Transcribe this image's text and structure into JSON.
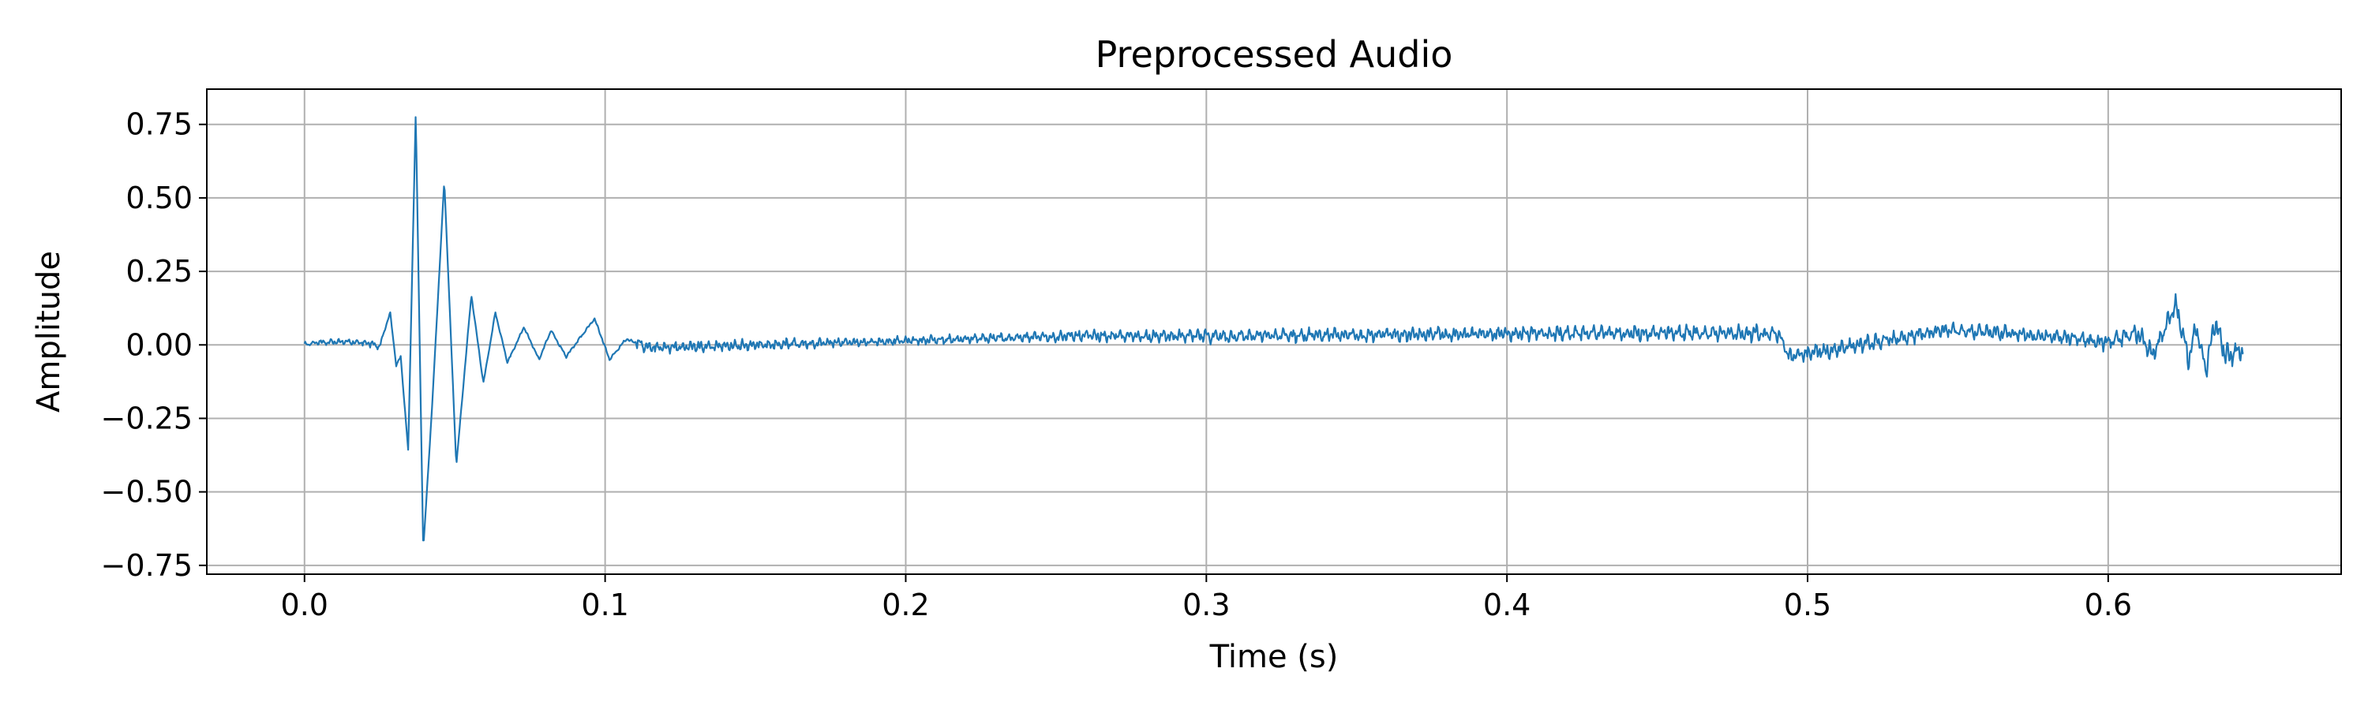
{
  "chart_data": {
    "type": "line",
    "title": "Preprocessed Audio",
    "xlabel": "Time (s)",
    "ylabel": "Amplitude",
    "xlim": [
      -0.0325,
      0.6775
    ],
    "ylim": [
      -0.78,
      0.87
    ],
    "xticks": [
      {
        "value": 0.0,
        "label": "0.0"
      },
      {
        "value": 0.1,
        "label": "0.1"
      },
      {
        "value": 0.2,
        "label": "0.2"
      },
      {
        "value": 0.3,
        "label": "0.3"
      },
      {
        "value": 0.4,
        "label": "0.4"
      },
      {
        "value": 0.5,
        "label": "0.5"
      },
      {
        "value": 0.6,
        "label": "0.6"
      }
    ],
    "yticks": [
      {
        "value": 0.75,
        "label": "0.75"
      },
      {
        "value": 0.5,
        "label": "0.50"
      },
      {
        "value": 0.25,
        "label": "0.25"
      },
      {
        "value": 0.0,
        "label": "0.00"
      },
      {
        "value": -0.25,
        "label": "−0.25"
      },
      {
        "value": -0.5,
        "label": "−0.50"
      },
      {
        "value": -0.75,
        "label": "−0.75"
      }
    ],
    "grid": true,
    "legend": "none",
    "line_color": "#1f77b4",
    "grid_color": "#b0b0b0",
    "series": [
      {
        "duration": 0.645,
        "envelope": [
          [
            0.0,
            0.004
          ],
          [
            0.02,
            0.006
          ],
          [
            0.12,
            0.01
          ],
          [
            0.2,
            0.007
          ],
          [
            0.3,
            0.011
          ],
          [
            0.42,
            0.012
          ],
          [
            0.5,
            0.014
          ],
          [
            0.58,
            0.012
          ],
          [
            0.605,
            0.015
          ],
          [
            0.645,
            0.02
          ]
        ],
        "keypoints": [
          [
            0.0,
            0.0
          ],
          [
            0.005,
            0.01
          ],
          [
            0.02,
            0.008
          ],
          [
            0.025,
            -0.005
          ],
          [
            0.0285,
            0.11
          ],
          [
            0.0305,
            -0.07
          ],
          [
            0.032,
            -0.04
          ],
          [
            0.0345,
            -0.36
          ],
          [
            0.037,
            0.79
          ],
          [
            0.0395,
            -0.7
          ],
          [
            0.0425,
            -0.2
          ],
          [
            0.0465,
            0.56
          ],
          [
            0.0505,
            -0.41
          ],
          [
            0.0555,
            0.17
          ],
          [
            0.0595,
            -0.13
          ],
          [
            0.0635,
            0.11
          ],
          [
            0.0675,
            -0.06
          ],
          [
            0.073,
            0.06
          ],
          [
            0.078,
            -0.05
          ],
          [
            0.082,
            0.05
          ],
          [
            0.087,
            -0.04
          ],
          [
            0.0965,
            0.09
          ],
          [
            0.1015,
            -0.05
          ],
          [
            0.107,
            0.02
          ],
          [
            0.115,
            -0.01
          ],
          [
            0.255,
            0.03
          ],
          [
            0.308,
            0.03
          ],
          [
            0.425,
            0.04
          ],
          [
            0.49,
            0.04
          ],
          [
            0.494,
            -0.04
          ],
          [
            0.545,
            0.05
          ],
          [
            0.567,
            0.04
          ],
          [
            0.6,
            0.01
          ],
          [
            0.604,
            0.02
          ],
          [
            0.61,
            0.04
          ],
          [
            0.615,
            -0.03
          ],
          [
            0.6225,
            0.14
          ],
          [
            0.6265,
            -0.05
          ],
          [
            0.6295,
            0.06
          ],
          [
            0.6325,
            -0.09
          ],
          [
            0.6355,
            0.08
          ],
          [
            0.639,
            -0.04
          ],
          [
            0.643,
            -0.02
          ],
          [
            0.645,
            -0.03
          ]
        ]
      }
    ]
  }
}
